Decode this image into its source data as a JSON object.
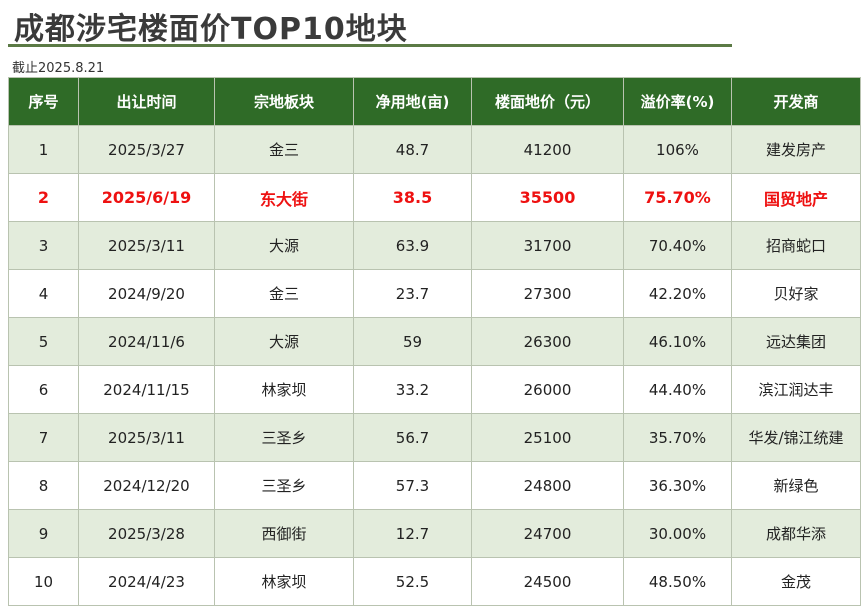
{
  "title": "成都涉宅楼面价TOP10地块",
  "date_note": "截止2025.8.21",
  "headers": [
    "序号",
    "出让时间",
    "宗地板块",
    "净用地(亩)",
    "楼面地价（元）",
    "溢价率(%)",
    "开发商"
  ],
  "rows": [
    [
      "1",
      "2025/3/27",
      "金三",
      "48.7",
      "41200",
      "106%",
      "建发房产"
    ],
    [
      "2",
      "2025/6/19",
      "东大街",
      "38.5",
      "35500",
      "75.70%",
      "国贸地产"
    ],
    [
      "3",
      "2025/3/11",
      "大源",
      "63.9",
      "31700",
      "70.40%",
      "招商蛇口"
    ],
    [
      "4",
      "2024/9/20",
      "金三",
      "23.7",
      "27300",
      "42.20%",
      "贝好家"
    ],
    [
      "5",
      "2024/11/6",
      "大源",
      "59",
      "26300",
      "46.10%",
      "远达集团"
    ],
    [
      "6",
      "2024/11/15",
      "林家坝",
      "33.2",
      "26000",
      "44.40%",
      "滨江润达丰"
    ],
    [
      "7",
      "2025/3/11",
      "三圣乡",
      "56.7",
      "25100",
      "35.70%",
      "华发/锦江统建"
    ],
    [
      "8",
      "2024/12/20",
      "三圣乡",
      "57.3",
      "24800",
      "36.30%",
      "新绿色"
    ],
    [
      "9",
      "2025/3/28",
      "西御街",
      "12.7",
      "24700",
      "30.00%",
      "成都华添"
    ],
    [
      "10",
      "2024/4/23",
      "林家坝",
      "52.5",
      "24500",
      "48.50%",
      "金茂"
    ]
  ],
  "highlight_row_index": 1,
  "colors": {
    "header_bg": "#2f6b27",
    "stripe": "#e3ecdc",
    "highlight_text": "#ee1111",
    "title_rule": "#5b7a45"
  }
}
